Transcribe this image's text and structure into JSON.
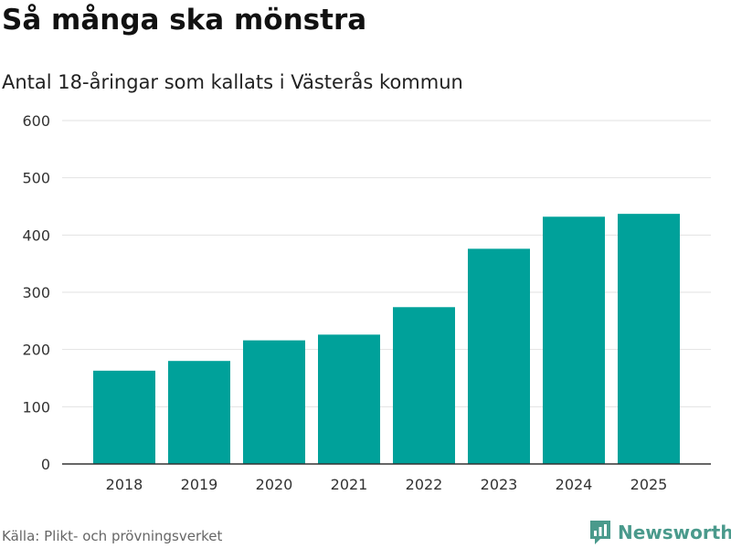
{
  "colors": {
    "bar": "#00a19a",
    "grid": "#e2e2e2",
    "axis": "#333333",
    "brand": "#4a9a8c"
  },
  "source": "Källa: Plikt- och prövningsverket",
  "brand": {
    "name": "Newsworthy",
    "icon": "newsworthy-logo-icon"
  },
  "chart_data": {
    "type": "bar",
    "title": "Så många ska mönstra",
    "subtitle": "Antal 18-åringar som kallats i Västerås kommun",
    "xlabel": "",
    "ylabel": "",
    "categories": [
      "2018",
      "2019",
      "2020",
      "2021",
      "2022",
      "2023",
      "2024",
      "2025"
    ],
    "values": [
      163,
      180,
      216,
      226,
      274,
      376,
      432,
      437
    ],
    "ylim": [
      0,
      600
    ],
    "yticks": [
      0,
      100,
      200,
      300,
      400,
      500,
      600
    ],
    "grid": true,
    "legend": "none"
  }
}
